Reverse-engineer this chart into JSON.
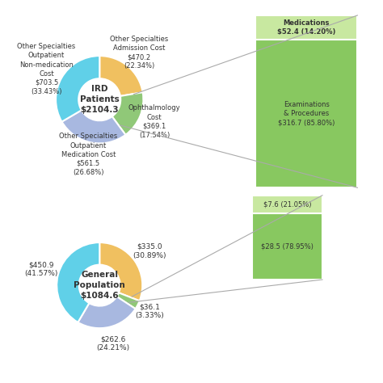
{
  "ird_center_label": "IRD\nPatients\n$2104.3",
  "ird_slices": [
    {
      "label": "Other Specialties\nAdmission Cost\n$470.2\n(22.34%)",
      "value": 22.34,
      "color": "#f0c060"
    },
    {
      "label": "Ophthalmology\nCost\n$369.1\n(17.54%)",
      "value": 17.54,
      "color": "#90c878"
    },
    {
      "label": "Other Specialties\nOutpatient\nMedication Cost\n$561.5\n(26.68%)",
      "value": 26.68,
      "color": "#a8b8e0"
    },
    {
      "label": "Other Specialties\nOutpatient\nNon-medication\nCost\n$703.5\n(33.43%)",
      "value": 33.43,
      "color": "#60d0e8"
    }
  ],
  "ird_bar_slices": [
    {
      "label": "Medications\n$52.4 (14.20%)",
      "value": 14.2,
      "color": "#c8e8a0"
    },
    {
      "label": "Examinations\n& Procedures\n$316.7 (85.80%)",
      "value": 85.8,
      "color": "#88c860"
    }
  ],
  "gp_center_label": "General\nPopulation\n$1084.6",
  "gp_slices": [
    {
      "label": "$335.0\n(30.89%)",
      "value": 30.89,
      "color": "#f0c060"
    },
    {
      "label": "$36.1\n(3.33%)",
      "value": 3.33,
      "color": "#90c878"
    },
    {
      "label": "$262.6\n(24.21%)",
      "value": 24.21,
      "color": "#a8b8e0"
    },
    {
      "label": "$450.9\n(41.57%)",
      "value": 41.57,
      "color": "#60d0e8"
    }
  ],
  "gp_bar_slices": [
    {
      "label": "$7.6 (21.05%)",
      "value": 21.05,
      "color": "#c8e8a0"
    },
    {
      "label": "$28.5 (78.95%)",
      "value": 78.95,
      "color": "#88c860"
    }
  ],
  "background_color": "#ffffff",
  "text_color": "#333333"
}
